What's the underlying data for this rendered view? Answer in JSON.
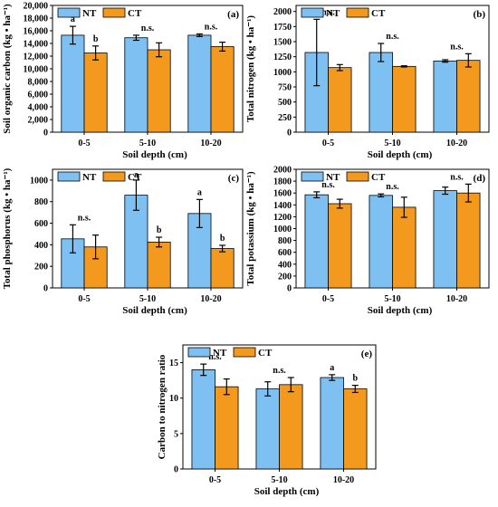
{
  "colors": {
    "NT": "#7fc0f2",
    "CT": "#f39a1e"
  },
  "chart_data": [
    {
      "type": "bar",
      "panel_label": "(a)",
      "categories": [
        "0-5",
        "5-10",
        "10-20"
      ],
      "xlabel": "Soil depth (cm)",
      "ylabel": "Soil organic carbon (kg • ha⁻¹)",
      "ylim": [
        0,
        20000
      ],
      "yticks": [
        0,
        2000,
        4000,
        6000,
        8000,
        10000,
        12000,
        14000,
        16000,
        18000,
        20000
      ],
      "ytick_labels": [
        "0",
        "2,000",
        "4,000",
        "6,000",
        "8,000",
        "10,000",
        "12,000",
        "14,000",
        "16,000",
        "18,000",
        "20,000"
      ],
      "legend": [
        "NT",
        "CT"
      ],
      "series": [
        {
          "name": "NT",
          "values": [
            15300,
            14900,
            15300
          ],
          "errors": [
            1400,
            400,
            200
          ]
        },
        {
          "name": "CT",
          "values": [
            12500,
            13000,
            13500
          ],
          "errors": [
            1100,
            1100,
            700
          ]
        }
      ],
      "annotations": [
        {
          "category": 0,
          "series": 0,
          "text": "a"
        },
        {
          "category": 0,
          "series": 1,
          "text": "b"
        },
        {
          "category": 1,
          "series": "group",
          "text": "n.s."
        },
        {
          "category": 2,
          "series": "group",
          "text": "n.s."
        }
      ]
    },
    {
      "type": "bar",
      "panel_label": "(b)",
      "categories": [
        "0-5",
        "5-10",
        "10-20"
      ],
      "xlabel": "Soil depth (cm)",
      "ylabel": "Total nitrogen (kg • ha⁻¹)",
      "ylim": [
        0,
        2100
      ],
      "yticks": [
        0,
        250,
        500,
        750,
        1000,
        1250,
        1500,
        1750,
        2000
      ],
      "ytick_labels": [
        "0",
        "250",
        "500",
        "750",
        "1000",
        "1250",
        "1500",
        "1750",
        "2000"
      ],
      "legend": [
        "NT",
        "CT"
      ],
      "series": [
        {
          "name": "NT",
          "values": [
            1320,
            1320,
            1180
          ],
          "errors": [
            550,
            150,
            20
          ]
        },
        {
          "name": "CT",
          "values": [
            1070,
            1090,
            1190
          ],
          "errors": [
            50,
            10,
            110
          ]
        }
      ],
      "annotations": [
        {
          "category": 0,
          "series": "group",
          "text": "n.s."
        },
        {
          "category": 1,
          "series": "group",
          "text": "n.s."
        },
        {
          "category": 2,
          "series": "group",
          "text": "n.s."
        }
      ]
    },
    {
      "type": "bar",
      "panel_label": "(c)",
      "categories": [
        "0-5",
        "5-10",
        "10-20"
      ],
      "xlabel": "Soil depth (cm)",
      "ylabel": "Total phosphorus (kg • ha⁻¹)",
      "ylim": [
        0,
        1100
      ],
      "yticks": [
        0,
        200,
        400,
        600,
        800,
        1000
      ],
      "ytick_labels": [
        "0",
        "200",
        "400",
        "600",
        "800",
        "1000"
      ],
      "legend": [
        "NT",
        "CT"
      ],
      "series": [
        {
          "name": "NT",
          "values": [
            455,
            860,
            690
          ],
          "errors": [
            130,
            140,
            130
          ]
        },
        {
          "name": "CT",
          "values": [
            380,
            425,
            365
          ],
          "errors": [
            110,
            45,
            30
          ]
        }
      ],
      "annotations": [
        {
          "category": 0,
          "series": "group",
          "text": "n.s."
        },
        {
          "category": 1,
          "series": 0,
          "text": "a"
        },
        {
          "category": 1,
          "series": 1,
          "text": "b"
        },
        {
          "category": 2,
          "series": 0,
          "text": "a"
        },
        {
          "category": 2,
          "series": 1,
          "text": "b"
        }
      ]
    },
    {
      "type": "bar",
      "panel_label": "(d)",
      "categories": [
        "0-5",
        "5-10",
        "10-20"
      ],
      "xlabel": "Soil depth (cm)",
      "ylabel": "Total potassium (kg • ha⁻¹)",
      "ylim": [
        0,
        2000
      ],
      "yticks": [
        0,
        200,
        400,
        600,
        800,
        1000,
        1200,
        1400,
        1600,
        1800,
        2000
      ],
      "ytick_labels": [
        "0",
        "200",
        "400",
        "600",
        "800",
        "1000",
        "1200",
        "1400",
        "1600",
        "1800",
        "2000"
      ],
      "legend": [
        "NT",
        "CT"
      ],
      "series": [
        {
          "name": "NT",
          "values": [
            1570,
            1560,
            1640
          ],
          "errors": [
            50,
            25,
            60
          ]
        },
        {
          "name": "CT",
          "values": [
            1420,
            1360,
            1600
          ],
          "errors": [
            75,
            170,
            150
          ]
        }
      ],
      "annotations": [
        {
          "category": 0,
          "series": "group",
          "text": "n.s."
        },
        {
          "category": 1,
          "series": "group",
          "text": "n.s."
        },
        {
          "category": 2,
          "series": "group",
          "text": "n.s."
        }
      ]
    },
    {
      "type": "bar",
      "panel_label": "(e)",
      "categories": [
        "0-5",
        "5-10",
        "10-20"
      ],
      "xlabel": "Soil depth (cm)",
      "ylabel": "Carbon to nitrogen ratio",
      "ylim": [
        0,
        17.5
      ],
      "yticks": [
        0,
        5,
        10,
        15
      ],
      "ytick_labels": [
        "0",
        "5",
        "10",
        "15"
      ],
      "legend": [
        "NT",
        "CT"
      ],
      "series": [
        {
          "name": "NT",
          "values": [
            14.0,
            11.3,
            12.9
          ],
          "errors": [
            0.8,
            1.0,
            0.4
          ]
        },
        {
          "name": "CT",
          "values": [
            11.6,
            11.9,
            11.3
          ],
          "errors": [
            1.1,
            1.0,
            0.5
          ]
        }
      ],
      "annotations": [
        {
          "category": 0,
          "series": "group",
          "text": "n.s."
        },
        {
          "category": 1,
          "series": "group",
          "text": "n.s."
        },
        {
          "category": 2,
          "series": 0,
          "text": "a"
        },
        {
          "category": 2,
          "series": 1,
          "text": "b"
        }
      ]
    }
  ]
}
